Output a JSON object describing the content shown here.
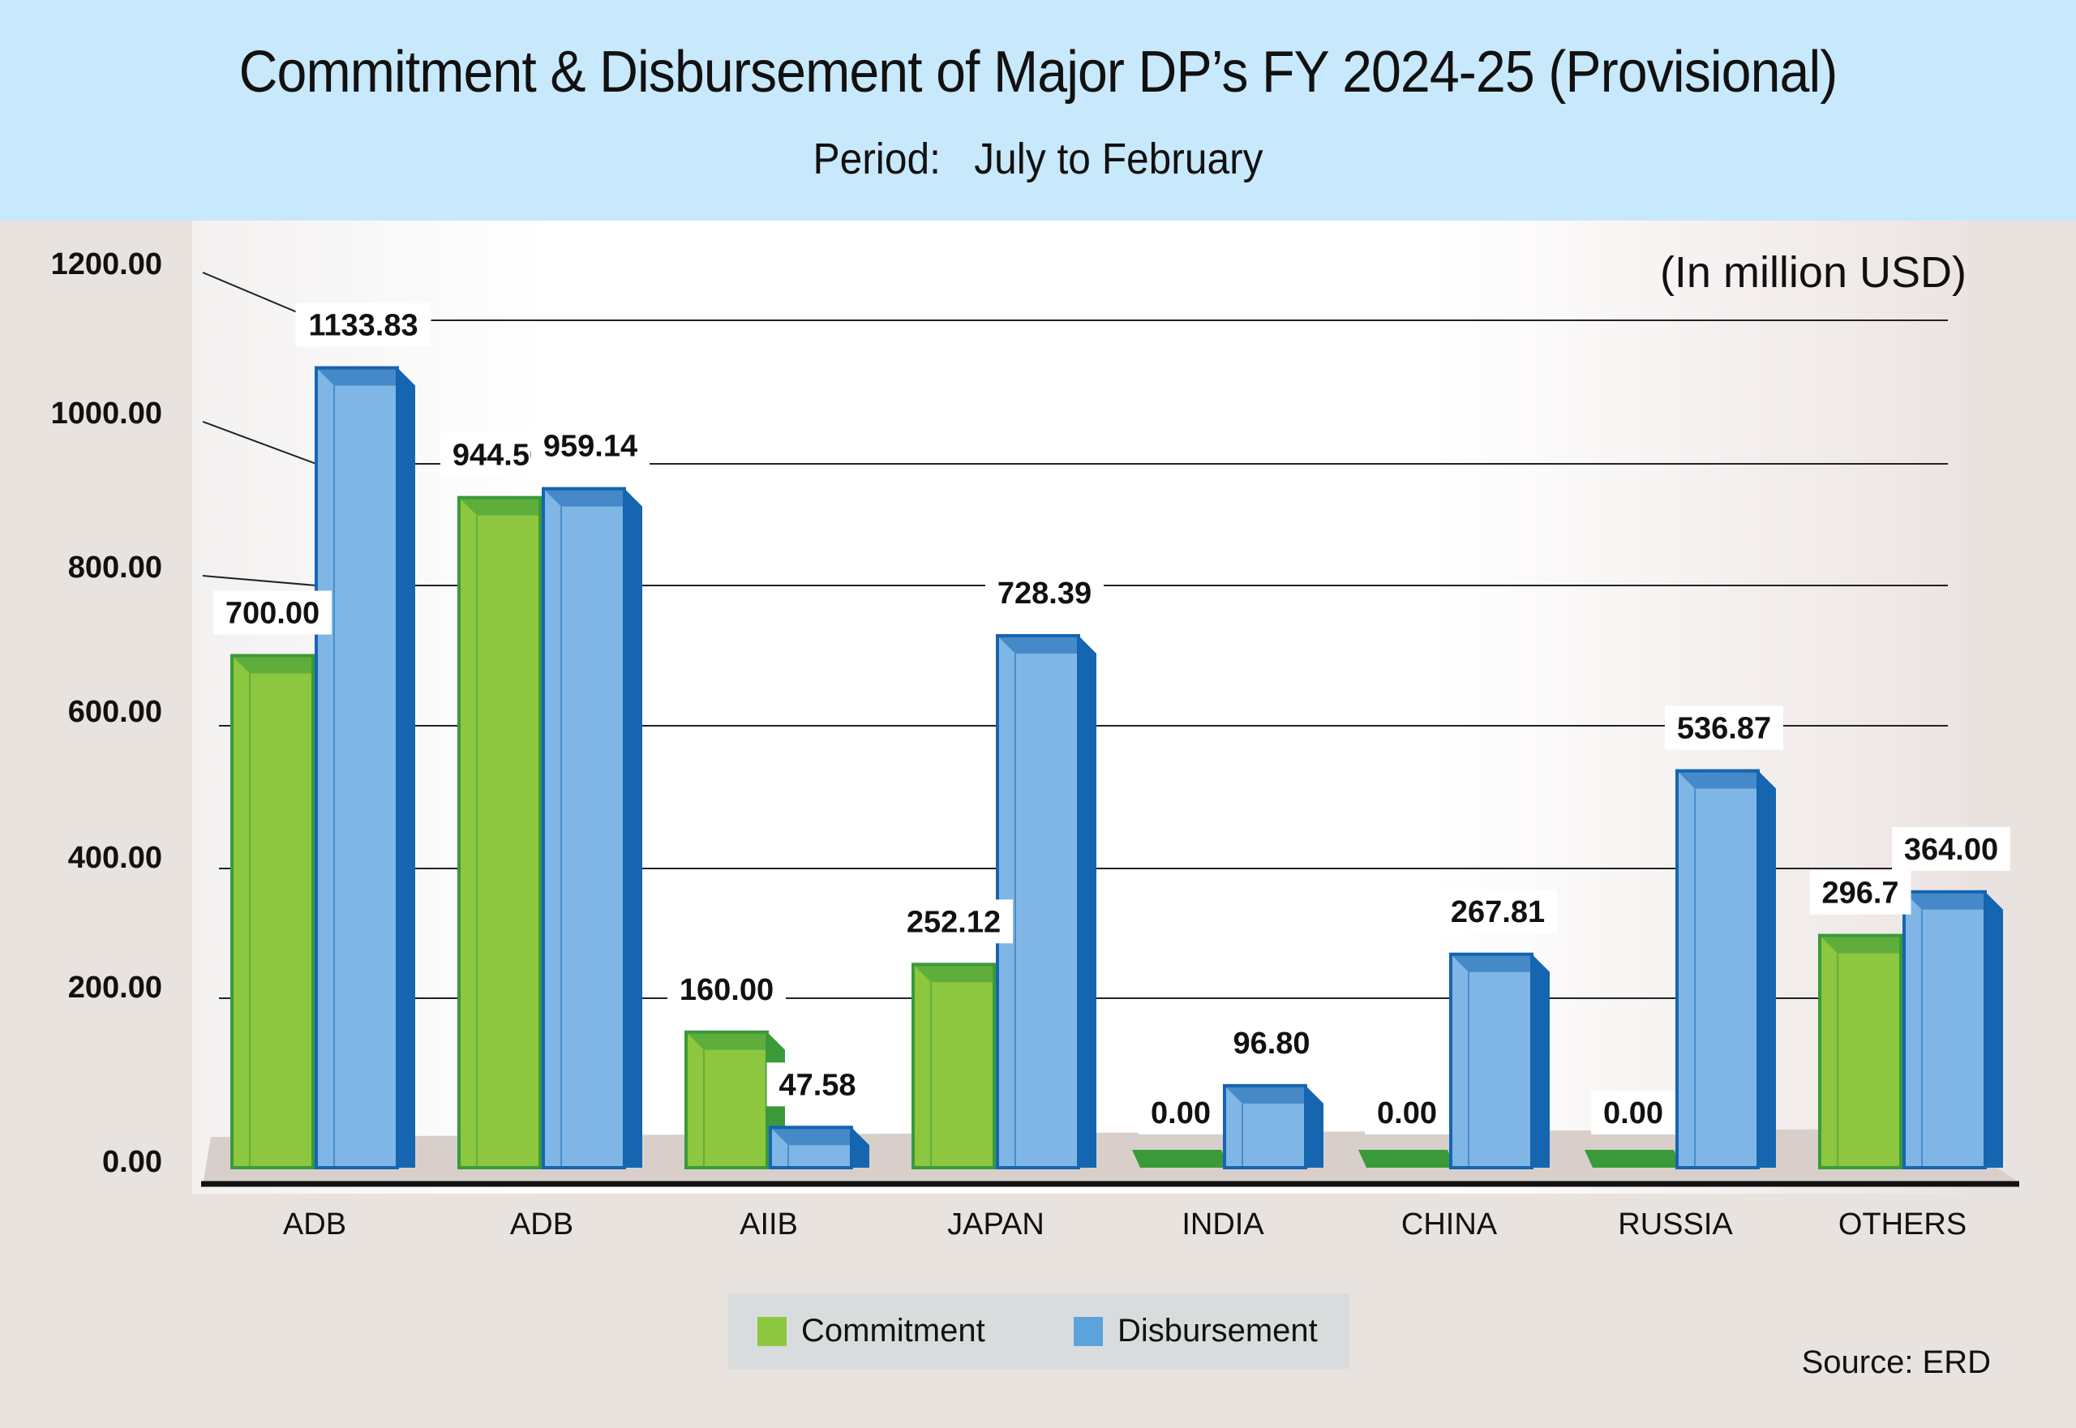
{
  "header": {
    "title": "Commitment & Disbursement of Major DP’s FY 2024-25 (Provisional)",
    "subtitle": "Period:   July to February"
  },
  "unit_label": "(In million USD)",
  "source": "Source: ERD",
  "legend": [
    {
      "label": "Commitment",
      "color": "#8dc63f"
    },
    {
      "label": "Disbursement",
      "color": "#5ba3dc"
    }
  ],
  "colors": {
    "commitment_front": "#8dc63f",
    "commitment_dark": "#3a9a3a",
    "disbursement_front": "#7fb6e6",
    "disbursement_dark": "#1565b0",
    "header_bg": "#c8e8fb"
  },
  "chart_data": {
    "type": "bar",
    "title": "Commitment & Disbursement of Major DP’s FY 2024-25 (Provisional)",
    "subtitle": "Period: July to February",
    "xlabel": "",
    "ylabel": "(In million USD)",
    "categories": [
      "ADB",
      "ADB",
      "AIIB",
      "JAPAN",
      "INDIA",
      "CHINA",
      "RUSSIA",
      "OTHERS"
    ],
    "series": [
      {
        "name": "Commitment",
        "values": [
          700.0,
          944.5,
          160.0,
          252.12,
          0.0,
          0.0,
          0.0,
          296.7
        ],
        "labels": [
          "700.00",
          "944.50",
          "160.00",
          "252.12",
          "0.00",
          "0.00",
          "0.00",
          "296.7"
        ]
      },
      {
        "name": "Disbursement",
        "values": [
          1133.83,
          959.14,
          47.58,
          728.39,
          96.8,
          267.81,
          536.87,
          364.0
        ],
        "labels": [
          "1133.83",
          "959.14",
          "47.58",
          "728.39",
          "96.80",
          "267.81",
          "536.87",
          "364.00"
        ]
      }
    ],
    "yticks": [
      "0.00",
      "200.00",
      "400.00",
      "600.00",
      "800.00",
      "1000.00",
      "1200.00"
    ],
    "ytick_values": [
      0,
      200,
      400,
      600,
      800,
      1000,
      1200
    ],
    "ylim": [
      0,
      1200
    ],
    "grid": true,
    "legend_position": "bottom-center"
  }
}
